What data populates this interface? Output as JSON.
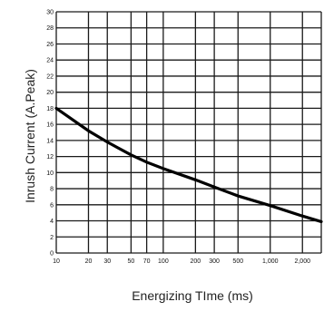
{
  "chart_data": {
    "type": "line",
    "title": "",
    "xlabel": "Energizing TIme (ms)",
    "ylabel": "Inrush Current (A.Peak)",
    "x_scale": "log",
    "xlim": [
      10,
      3000
    ],
    "ylim": [
      0,
      30
    ],
    "grid": true,
    "x_tick_values": [
      10,
      20,
      30,
      50,
      70,
      100,
      200,
      300,
      500,
      1000,
      2000
    ],
    "x_tick_labels": [
      "10",
      "20",
      "30",
      "50",
      "70",
      "100",
      "200",
      "300",
      "500",
      "1,000",
      "2,000"
    ],
    "y_ticks": [
      0,
      2,
      4,
      6,
      8,
      10,
      12,
      14,
      16,
      18,
      20,
      22,
      24,
      26,
      28,
      30
    ],
    "series": [
      {
        "x": [
          10,
          20,
          30,
          50,
          70,
          100,
          200,
          300,
          500,
          1000,
          2000,
          3000
        ],
        "y": [
          18,
          15.2,
          13.8,
          12.2,
          11.3,
          10.5,
          9.1,
          8.2,
          7.1,
          5.9,
          4.6,
          3.9
        ]
      }
    ]
  }
}
